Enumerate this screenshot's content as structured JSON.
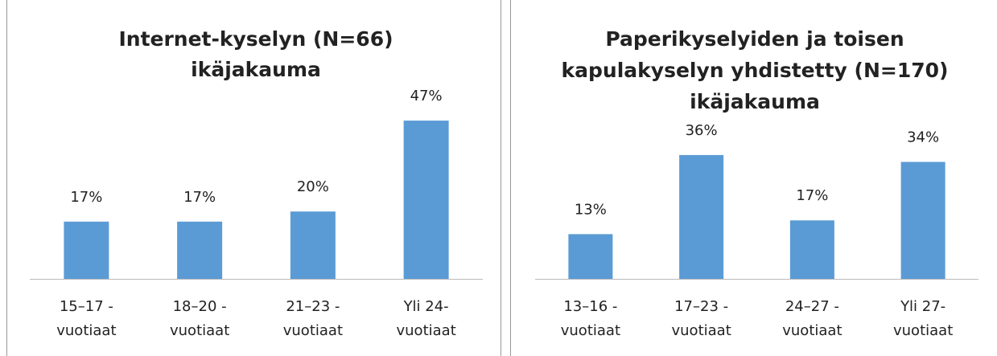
{
  "charts": [
    {
      "chart_data": {
        "type": "bar",
        "title": [
          "Internet-kyselyn (N=66)",
          "ikäjakauma"
        ],
        "categories": [
          [
            "15–17 -",
            "vuotiaat"
          ],
          [
            "18–20 -",
            "vuotiaat"
          ],
          [
            "21–23 -",
            "vuotiaat"
          ],
          [
            "Yli 24-",
            "vuotiaat"
          ]
        ],
        "values": [
          17,
          17,
          20,
          47
        ],
        "value_labels": [
          "17%",
          "17%",
          "20%",
          "47%"
        ],
        "color": "#5b9bd5"
      }
    },
    {
      "chart_data": {
        "type": "bar",
        "title": [
          "Paperikyselyiden ja toisen",
          "kapulakyselyn yhdistetty (N=170)",
          "ikäjakauma"
        ],
        "categories": [
          [
            "13–16 -",
            "vuotiaat"
          ],
          [
            "17–23 -",
            "vuotiaat"
          ],
          [
            "24–27 -",
            "vuotiaat"
          ],
          [
            "Yli 27-",
            "vuotiaat"
          ]
        ],
        "values": [
          13,
          36,
          17,
          34
        ],
        "value_labels": [
          "13%",
          "36%",
          "17%",
          "34%"
        ],
        "color": "#5b9bd5"
      }
    }
  ]
}
